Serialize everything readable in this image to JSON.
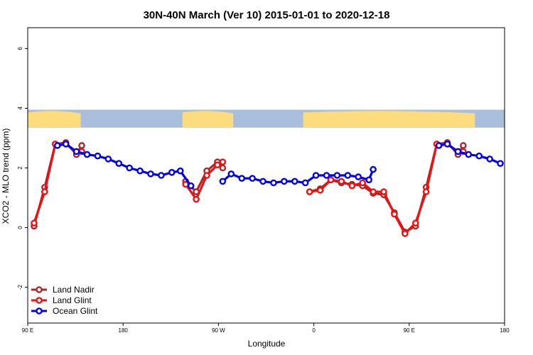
{
  "chart_data": {
    "type": "line",
    "title": "30N-40N March (Ver 10)   2015-01-01 to 2020-12-18",
    "xlabel": "Longitude",
    "ylabel": "XCO2 - MLO trend (ppm)",
    "xlim": [
      90,
      540
    ],
    "ylim": [
      -3.2,
      6.7
    ],
    "x_ticks": [
      {
        "value": 90,
        "label": "90 E"
      },
      {
        "value": 180,
        "label": "180"
      },
      {
        "value": 270,
        "label": "90 W"
      },
      {
        "value": 360,
        "label": "0"
      },
      {
        "value": 450,
        "label": "90 E"
      },
      {
        "value": 540,
        "label": "180"
      }
    ],
    "y_ticks": [
      {
        "value": -2,
        "label": "-2"
      },
      {
        "value": 0,
        "label": "0"
      },
      {
        "value": 2,
        "label": "2"
      },
      {
        "value": 4,
        "label": "4"
      },
      {
        "value": 6,
        "label": "6"
      }
    ],
    "map_band": {
      "ymin": 3.35,
      "ymax": 3.95,
      "ocean_color": "#a8bedc",
      "land_color": "#fcdc7c"
    },
    "legend_position": "bottom-left",
    "series": [
      {
        "name": "Land Nadir",
        "color": "#a52a2a",
        "segments": [
          [
            [
              96,
              0.05
            ],
            [
              106,
              1.35
            ],
            [
              116,
              2.8
            ],
            [
              126,
              2.85
            ],
            [
              136,
              2.45
            ],
            [
              141,
              2.75
            ]
          ],
          [
            [
              239,
              1.55
            ],
            [
              249,
              1.2
            ],
            [
              259,
              1.9
            ],
            [
              269,
              2.2
            ],
            [
              274,
              2.0
            ]
          ],
          [
            [
              356,
              1.2
            ],
            [
              366,
              1.3
            ],
            [
              376,
              1.6
            ],
            [
              386,
              1.5
            ],
            [
              396,
              1.45
            ],
            [
              406,
              1.4
            ],
            [
              416,
              1.15
            ],
            [
              426,
              1.1
            ],
            [
              436,
              0.5
            ],
            [
              446,
              -0.15
            ],
            [
              456,
              0.05
            ],
            [
              466,
              1.35
            ],
            [
              476,
              2.8
            ],
            [
              486,
              2.85
            ],
            [
              496,
              2.45
            ],
            [
              501,
              2.75
            ]
          ]
        ]
      },
      {
        "name": "Land Glint",
        "color": "#ee1111",
        "segments": [
          [
            [
              96,
              0.15
            ],
            [
              106,
              1.2
            ],
            [
              116,
              2.8
            ],
            [
              126,
              2.8
            ],
            [
              136,
              2.55
            ],
            [
              141,
              2.55
            ]
          ],
          [
            [
              239,
              1.45
            ],
            [
              249,
              0.95
            ],
            [
              259,
              1.75
            ],
            [
              269,
              2.1
            ],
            [
              274,
              2.2
            ]
          ],
          [
            [
              356,
              1.2
            ],
            [
              366,
              1.25
            ],
            [
              376,
              1.6
            ],
            [
              386,
              1.55
            ],
            [
              396,
              1.4
            ],
            [
              406,
              1.5
            ],
            [
              416,
              1.2
            ],
            [
              426,
              1.2
            ],
            [
              436,
              0.45
            ],
            [
              446,
              -0.2
            ],
            [
              456,
              0.15
            ],
            [
              466,
              1.2
            ],
            [
              476,
              2.8
            ],
            [
              486,
              2.8
            ],
            [
              496,
              2.55
            ],
            [
              501,
              2.55
            ]
          ]
        ]
      },
      {
        "name": "Ocean Glint",
        "color": "#0000ee",
        "segments": [
          [
            [
              118,
              2.75
            ],
            [
              126,
              2.8
            ],
            [
              136,
              2.55
            ],
            [
              146,
              2.45
            ],
            [
              156,
              2.4
            ],
            [
              166,
              2.3
            ],
            [
              176,
              2.15
            ],
            [
              186,
              2.0
            ],
            [
              196,
              1.9
            ],
            [
              206,
              1.8
            ],
            [
              216,
              1.75
            ],
            [
              226,
              1.85
            ],
            [
              234,
              1.9
            ],
            [
              244,
              1.4
            ]
          ],
          [
            [
              274,
              1.55
            ],
            [
              282,
              1.8
            ],
            [
              292,
              1.65
            ],
            [
              302,
              1.65
            ],
            [
              312,
              1.55
            ],
            [
              322,
              1.5
            ],
            [
              332,
              1.55
            ],
            [
              342,
              1.55
            ],
            [
              352,
              1.5
            ],
            [
              362,
              1.75
            ],
            [
              372,
              1.75
            ],
            [
              382,
              1.75
            ],
            [
              392,
              1.75
            ],
            [
              402,
              1.7
            ],
            [
              412,
              1.6
            ],
            [
              416,
              1.95
            ]
          ]
        ],
        "extra_segments": [
          [
            [
              478,
              2.75
            ],
            [
              486,
              2.8
            ],
            [
              496,
              2.55
            ],
            [
              506,
              2.45
            ],
            [
              516,
              2.4
            ],
            [
              526,
              2.3
            ],
            [
              536,
              2.15
            ]
          ]
        ]
      }
    ]
  }
}
